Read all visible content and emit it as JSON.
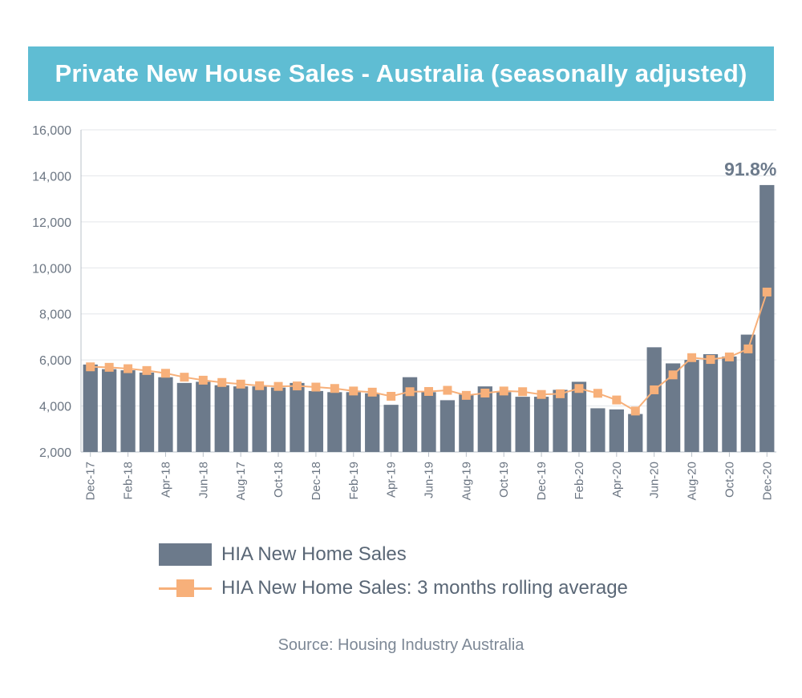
{
  "title": "Private New House Sales - Australia (seasonally adjusted)",
  "source": "Source: Housing Industry Australia",
  "colors": {
    "banner": "#5fbdd3",
    "bars": "#6c7a8b",
    "line": "#f7b07a",
    "text": "#5a6776"
  },
  "chart_data": {
    "type": "bar",
    "ylim": [
      2000,
      16000
    ],
    "yticks": [
      "16,000",
      "14,000",
      "12,000",
      "10,000",
      "8,000",
      "6,000",
      "4,000",
      "2,000"
    ],
    "ytick_values": [
      16000,
      14000,
      12000,
      10000,
      8000,
      6000,
      4000,
      2000
    ],
    "categories": [
      "Dec-17",
      "Jan-18",
      "Feb-18",
      "Mar-18",
      "Apr-18",
      "May-18",
      "Jun-18",
      "Jul-18",
      "Aug-17",
      "Sep-18",
      "Oct-18",
      "Nov-18",
      "Dec-18",
      "Jan-19",
      "Feb-19",
      "Mar-19",
      "Apr-19",
      "May-19",
      "Jun-19",
      "Jul-19",
      "Aug-19",
      "Sep-19",
      "Oct-19",
      "Nov-19",
      "Dec-19",
      "Jan-20",
      "Feb-20",
      "Mar-20",
      "Apr-20",
      "May-20",
      "Jun-20",
      "Jul-20",
      "Aug-20",
      "Sep-20",
      "Oct-20",
      "Nov-20",
      "Dec-20"
    ],
    "tick_labels": [
      "Dec-17",
      "Feb-18",
      "Apr-18",
      "Jun-18",
      "Aug-17",
      "Oct-18",
      "Dec-18",
      "Feb-19",
      "Apr-19",
      "Jun-19",
      "Aug-19",
      "Oct-19",
      "Dec-19",
      "Feb-20",
      "Apr-20",
      "Jun-20",
      "Aug-20",
      "Oct-20",
      "Dec-20"
    ],
    "tick_label_indices": [
      0,
      2,
      4,
      6,
      8,
      10,
      12,
      14,
      16,
      18,
      20,
      22,
      24,
      26,
      28,
      30,
      32,
      34,
      36
    ],
    "series": [
      {
        "name": "HIA New Home Sales",
        "kind": "bar",
        "values": [
          5800,
          5600,
          5550,
          5450,
          5250,
          5000,
          5050,
          4900,
          4850,
          4850,
          4800,
          5000,
          4650,
          4600,
          4600,
          4550,
          4050,
          5250,
          4600,
          4250,
          4500,
          4850,
          4600,
          4400,
          4400,
          4700,
          5050,
          3900,
          3850,
          3650,
          6550,
          5850,
          6000,
          6250,
          6150,
          7100,
          13600
        ]
      },
      {
        "name": "HIA New Home Sales: 3 months rolling average",
        "kind": "line",
        "values": [
          5700,
          5680,
          5620,
          5540,
          5420,
          5250,
          5120,
          5020,
          4950,
          4880,
          4850,
          4870,
          4820,
          4760,
          4650,
          4600,
          4420,
          4620,
          4630,
          4680,
          4460,
          4560,
          4650,
          4620,
          4500,
          4530,
          4760,
          4550,
          4260,
          3780,
          4700,
          5350,
          6100,
          6020,
          6130,
          6480,
          8950
        ]
      }
    ],
    "annotations": [
      {
        "text": "91.8%",
        "category": "Dec-20"
      }
    ],
    "grid": true,
    "legend_position": "bottom"
  }
}
